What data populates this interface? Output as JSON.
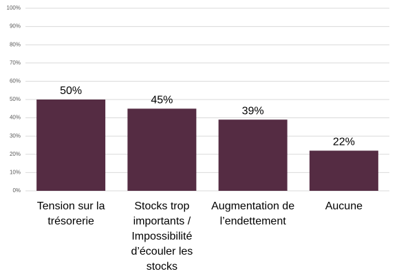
{
  "chart_data": {
    "type": "bar",
    "categories": [
      "Tension sur la trésorerie",
      "Stocks trop importants / Impossibilité d’écouler les stocks",
      "Augmentation de l’endettement",
      "Aucune"
    ],
    "values": [
      50,
      45,
      39,
      22
    ],
    "value_labels": [
      "50%",
      "45%",
      "39%",
      "22%"
    ],
    "color": "#552c43",
    "ylim": [
      0,
      100
    ],
    "yticks": [
      {
        "value": 0,
        "label": "0%"
      },
      {
        "value": 10,
        "label": "10%"
      },
      {
        "value": 20,
        "label": "20%"
      },
      {
        "value": 30,
        "label": "30%"
      },
      {
        "value": 40,
        "label": "40%"
      },
      {
        "value": 50,
        "label": "50%"
      },
      {
        "value": 60,
        "label": "60%"
      },
      {
        "value": 70,
        "label": "70%"
      },
      {
        "value": 80,
        "label": "80%"
      },
      {
        "value": 90,
        "label": "90%"
      },
      {
        "value": 100,
        "label": "100%"
      }
    ],
    "grid": true
  }
}
